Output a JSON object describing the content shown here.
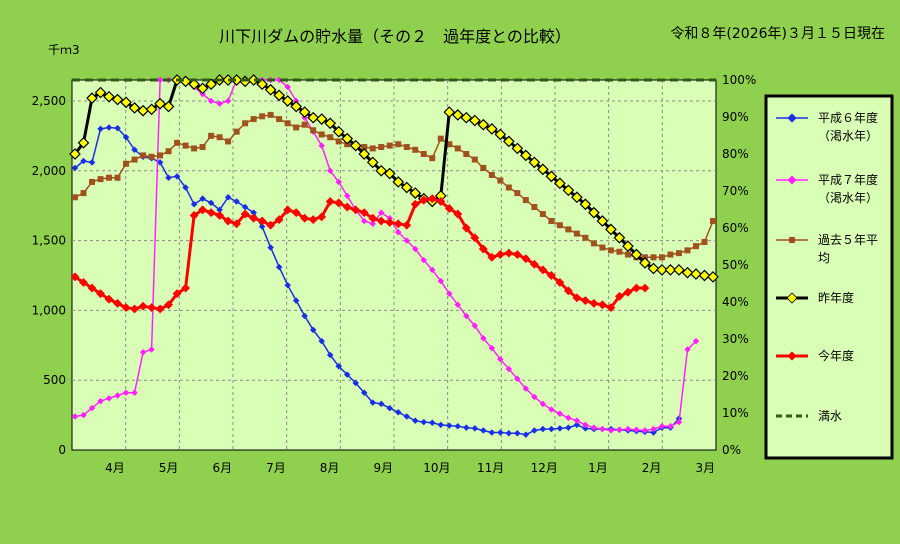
{
  "chart_data": {
    "type": "line",
    "title": "川下川ダムの貯水量（その２　過年度との比較）",
    "date_label": "令和８年(2026年)３月１５日現在",
    "unit_label": "千ｍ3",
    "left_axis": {
      "min": 0,
      "max": 2650,
      "ticks": [
        0,
        500,
        1000,
        1500,
        2000,
        2500
      ],
      "tick_labels": [
        "0",
        "500",
        "1,000",
        "1,500",
        "2,000",
        "2,500"
      ]
    },
    "right_axis": {
      "min": 0,
      "max": 100,
      "ticks": [
        0,
        10,
        20,
        30,
        40,
        50,
        60,
        70,
        80,
        90,
        100
      ],
      "tick_labels": [
        "0%",
        "10%",
        "20%",
        "30%",
        "40%",
        "50%",
        "60%",
        "70%",
        "80%",
        "90%",
        "100%"
      ]
    },
    "months": [
      "4月",
      "5月",
      "6月",
      "7月",
      "8月",
      "9月",
      "10月",
      "11月",
      "12月",
      "1月",
      "2月",
      "3月"
    ],
    "grid": true,
    "legend_position": "right",
    "series": [
      {
        "name": "平成６年度\n（渇水年）",
        "color": "#1a2ee6",
        "marker": "diamond",
        "values": [
          2020,
          2070,
          2060,
          2300,
          2310,
          2305,
          2240,
          2150,
          2100,
          2090,
          2060,
          1950,
          1960,
          1880,
          1760,
          1800,
          1770,
          1720,
          1810,
          1780,
          1740,
          1700,
          1600,
          1450,
          1310,
          1180,
          1070,
          960,
          860,
          780,
          680,
          600,
          540,
          480,
          410,
          340,
          330,
          300,
          270,
          240,
          210,
          200,
          195,
          180,
          175,
          170,
          160,
          155,
          140,
          125,
          125,
          120,
          120,
          110,
          140,
          150,
          150,
          155,
          160,
          180,
          155,
          150,
          150,
          150,
          145,
          140,
          135,
          130,
          125,
          160,
          160,
          225
        ]
      },
      {
        "name": "平成７年度\n（渇水年）",
        "color": "#ff22ff",
        "marker": "diamond",
        "values": [
          240,
          250,
          300,
          350,
          370,
          390,
          410,
          410,
          700,
          720,
          2650,
          2650,
          2650,
          2640,
          2600,
          2550,
          2500,
          2480,
          2500,
          2650,
          2650,
          2650,
          2650,
          2650,
          2650,
          2600,
          2500,
          2380,
          2280,
          2180,
          2000,
          1920,
          1820,
          1720,
          1640,
          1620,
          1700,
          1660,
          1560,
          1500,
          1440,
          1360,
          1290,
          1210,
          1120,
          1040,
          960,
          890,
          800,
          730,
          650,
          580,
          510,
          440,
          380,
          330,
          290,
          260,
          230,
          210,
          180,
          160,
          150,
          140,
          145,
          150,
          145,
          140,
          150,
          170,
          170,
          200,
          720,
          780
        ]
      },
      {
        "name": "過去５年平\n均",
        "color": "#a0521e",
        "marker": "square",
        "values": [
          1810,
          1840,
          1920,
          1940,
          1950,
          1950,
          2050,
          2080,
          2110,
          2100,
          2110,
          2140,
          2200,
          2180,
          2160,
          2170,
          2250,
          2240,
          2210,
          2280,
          2340,
          2370,
          2390,
          2400,
          2370,
          2340,
          2310,
          2330,
          2290,
          2260,
          2240,
          2210,
          2190,
          2180,
          2170,
          2160,
          2170,
          2180,
          2190,
          2170,
          2150,
          2120,
          2090,
          2230,
          2190,
          2160,
          2120,
          2080,
          2020,
          1970,
          1930,
          1880,
          1840,
          1790,
          1740,
          1690,
          1640,
          1610,
          1580,
          1550,
          1520,
          1480,
          1450,
          1430,
          1420,
          1400,
          1380,
          1380,
          1380,
          1380,
          1400,
          1410,
          1430,
          1460,
          1490,
          1640
        ]
      },
      {
        "name": "昨年度",
        "color": "#000000",
        "marker": "diamond",
        "marker_fill": "#ffff00",
        "values": [
          2120,
          2200,
          2520,
          2560,
          2530,
          2510,
          2490,
          2450,
          2430,
          2440,
          2480,
          2460,
          2650,
          2640,
          2620,
          2590,
          2620,
          2650,
          2650,
          2650,
          2640,
          2650,
          2620,
          2580,
          2540,
          2500,
          2460,
          2420,
          2380,
          2370,
          2340,
          2280,
          2230,
          2180,
          2120,
          2060,
          2000,
          1980,
          1920,
          1880,
          1840,
          1800,
          1780,
          1820,
          2420,
          2400,
          2380,
          2360,
          2330,
          2300,
          2260,
          2210,
          2160,
          2110,
          2060,
          2010,
          1960,
          1910,
          1860,
          1810,
          1760,
          1700,
          1640,
          1580,
          1520,
          1460,
          1400,
          1340,
          1300,
          1290,
          1290,
          1290,
          1270,
          1260,
          1250,
          1240
        ]
      },
      {
        "name": "今年度",
        "color": "#ff0000",
        "marker": "diamond",
        "values": [
          1240,
          1200,
          1160,
          1120,
          1080,
          1050,
          1020,
          1010,
          1030,
          1020,
          1010,
          1040,
          1120,
          1160,
          1680,
          1720,
          1700,
          1680,
          1640,
          1620,
          1690,
          1660,
          1640,
          1610,
          1650,
          1720,
          1700,
          1660,
          1650,
          1670,
          1780,
          1770,
          1740,
          1720,
          1700,
          1660,
          1640,
          1630,
          1620,
          1610,
          1760,
          1790,
          1800,
          1780,
          1730,
          1690,
          1590,
          1520,
          1440,
          1380,
          1400,
          1410,
          1400,
          1370,
          1330,
          1290,
          1250,
          1200,
          1140,
          1090,
          1070,
          1050,
          1040,
          1020,
          1100,
          1130,
          1160,
          1160
        ]
      },
      {
        "name": "満水",
        "color": "#2f5b16",
        "dashed": true,
        "values": [
          2650
        ]
      }
    ]
  }
}
